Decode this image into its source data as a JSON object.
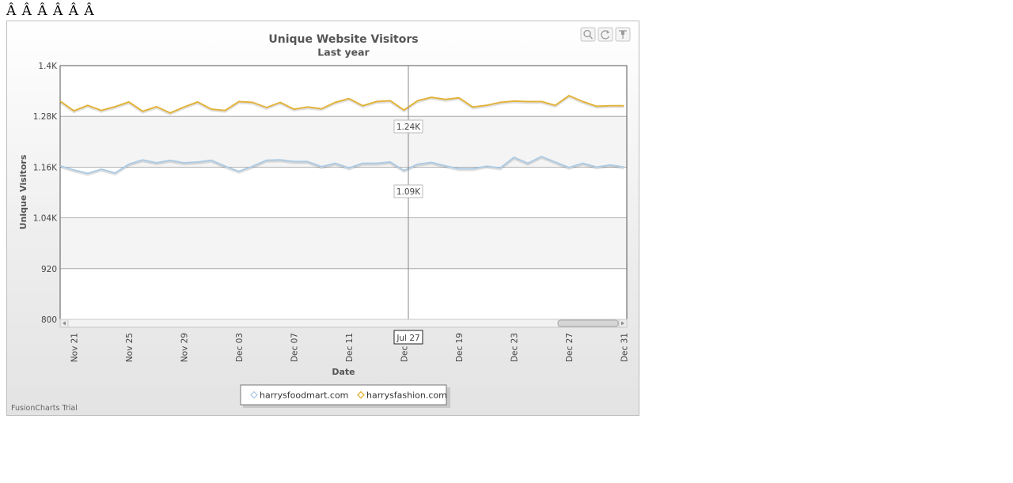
{
  "page_garbage_text": "Â Â  Â Â  Â Â",
  "toolbar": {
    "zoom_icon": "magnifier-icon",
    "reset_icon": "reset-zoom-icon",
    "pin_icon": "pin-icon"
  },
  "trial_text": "FusionCharts Trial",
  "hover": {
    "date_label": "Jul 27",
    "tooltips": [
      {
        "series": "harrysfashion.com",
        "text": "1.24K"
      },
      {
        "series": "harrysfoodmart.com",
        "text": "1.09K"
      }
    ]
  },
  "chart_data": {
    "type": "line",
    "title": "Unique Website Visitors",
    "subtitle": "Last year",
    "xlabel": "Date",
    "ylabel": "Unique Visitors",
    "ylim": [
      800,
      1400
    ],
    "y_ticks": [
      {
        "value": 800,
        "label": "800"
      },
      {
        "value": 920,
        "label": "920"
      },
      {
        "value": 1040,
        "label": "1.04K"
      },
      {
        "value": 1160,
        "label": "1.16K"
      },
      {
        "value": 1280,
        "label": "1.28K"
      },
      {
        "value": 1400,
        "label": "1.4K"
      }
    ],
    "x_ticks": [
      {
        "index": 1,
        "label": "Nov 21"
      },
      {
        "index": 5,
        "label": "Nov 25"
      },
      {
        "index": 9,
        "label": "Nov 29"
      },
      {
        "index": 13,
        "label": "Dec 03"
      },
      {
        "index": 17,
        "label": "Dec 07"
      },
      {
        "index": 21,
        "label": "Dec 11"
      },
      {
        "index": 25,
        "label": "Dec 15"
      },
      {
        "index": 29,
        "label": "Dec 19"
      },
      {
        "index": 33,
        "label": "Dec 23"
      },
      {
        "index": 37,
        "label": "Dec 27"
      },
      {
        "index": 41,
        "label": "Dec 31"
      }
    ],
    "x_range": [
      0,
      41.2
    ],
    "grid": true,
    "legend_position": "bottom",
    "series": [
      {
        "name": "harrysfoodmart.com",
        "color": "#aecbe4",
        "values": [
          1163,
          1153,
          1145,
          1155,
          1146,
          1167,
          1177,
          1170,
          1176,
          1170,
          1172,
          1176,
          1162,
          1150,
          1162,
          1176,
          1177,
          1173,
          1173,
          1161,
          1169,
          1158,
          1169,
          1169,
          1172,
          1152,
          1167,
          1171,
          1163,
          1156,
          1156,
          1162,
          1158,
          1183,
          1169,
          1185,
          1172,
          1159,
          1169,
          1160,
          1165,
          1160
        ]
      },
      {
        "name": "harrysfashion.com",
        "color": "#e2b33c",
        "values": [
          1316,
          1293,
          1306,
          1294,
          1303,
          1314,
          1292,
          1303,
          1288,
          1302,
          1314,
          1297,
          1294,
          1315,
          1313,
          1301,
          1313,
          1297,
          1302,
          1298,
          1313,
          1322,
          1305,
          1315,
          1317,
          1295,
          1317,
          1325,
          1320,
          1324,
          1302,
          1306,
          1313,
          1316,
          1315,
          1315,
          1306,
          1329,
          1315,
          1304,
          1305,
          1305
        ]
      }
    ]
  }
}
